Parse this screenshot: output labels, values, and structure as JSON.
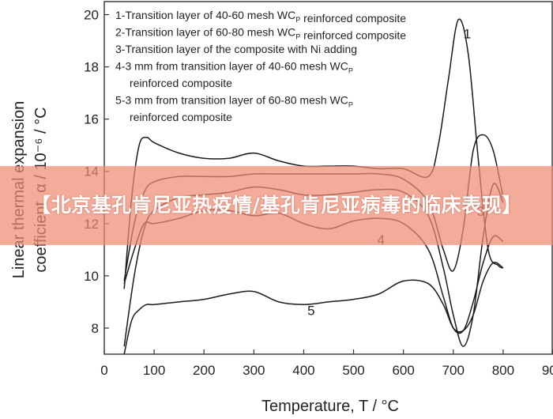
{
  "chart_data": {
    "type": "line",
    "xlabel": "Temperature, T / °C",
    "ylabel": "Linear thermal expansion coefficient, α / 10⁻⁶ / °C",
    "xlim": [
      0,
      900
    ],
    "ylim": [
      7,
      20.5
    ],
    "xticks": [
      0,
      100,
      200,
      300,
      400,
      500,
      600,
      700,
      800,
      900
    ],
    "yticks": [
      8,
      10,
      12,
      14,
      16,
      18,
      20
    ],
    "grid": false,
    "legend_position": "top-left",
    "legend": [
      "1-Transition layer of 40-60 mesh WC_P reinforced composite",
      "2-Transition layer of 60-80 mesh WC_P reinforced composite",
      "3-Transition layer of the composite with Ni adding",
      "4-3 mm from transition layer of 40-60 mesh WC_P reinforced composite",
      "5-3 mm from transition layer of 60-80 mesh WC_P reinforced composite"
    ],
    "series": [
      {
        "name": "1",
        "x": [
          40,
          55,
          70,
          85,
          100,
          150,
          200,
          250,
          300,
          350,
          400,
          450,
          500,
          550,
          600,
          650,
          670,
          690,
          710,
          730,
          750,
          770,
          790,
          800
        ],
        "y": [
          9.5,
          13.0,
          15.0,
          15.3,
          15.1,
          14.7,
          14.5,
          14.5,
          14.7,
          14.4,
          14.2,
          14.2,
          14.2,
          14.1,
          14.1,
          13.8,
          15.0,
          17.5,
          19.8,
          18.5,
          14.5,
          11.0,
          10.4,
          10.3
        ]
      },
      {
        "name": "2",
        "x": [
          40,
          60,
          80,
          100,
          150,
          200,
          250,
          300,
          350,
          400,
          450,
          500,
          550,
          600,
          650,
          680,
          700,
          720,
          740,
          760,
          780,
          800
        ],
        "y": [
          9.8,
          12.0,
          13.2,
          13.6,
          13.8,
          13.8,
          13.8,
          13.9,
          13.9,
          13.9,
          13.9,
          13.9,
          13.9,
          13.7,
          12.8,
          11.0,
          10.2,
          11.8,
          14.8,
          15.4,
          14.8,
          13.0
        ]
      },
      {
        "name": "3",
        "x": [
          40,
          60,
          80,
          100,
          150,
          200,
          250,
          300,
          350,
          400,
          450,
          500,
          550,
          600,
          650,
          680,
          700,
          720,
          740,
          760,
          780,
          800
        ],
        "y": [
          7.3,
          10.0,
          11.8,
          12.5,
          13.0,
          13.1,
          13.2,
          13.4,
          13.3,
          13.1,
          13.1,
          13.2,
          13.3,
          13.2,
          12.3,
          10.3,
          8.5,
          7.3,
          8.5,
          11.5,
          13.5,
          12.8
        ]
      },
      {
        "name": "4",
        "x": [
          40,
          60,
          80,
          100,
          150,
          200,
          250,
          300,
          350,
          400,
          450,
          500,
          550,
          600,
          650,
          680,
          700,
          720,
          740,
          760,
          780,
          800
        ],
        "y": [
          9.7,
          11.0,
          12.0,
          12.0,
          12.2,
          12.5,
          12.5,
          12.3,
          12.4,
          12.0,
          11.8,
          12.1,
          12.2,
          12.0,
          11.0,
          9.2,
          8.0,
          7.9,
          9.0,
          10.5,
          11.5,
          11.3
        ]
      },
      {
        "name": "5",
        "x": [
          40,
          55,
          70,
          85,
          100,
          150,
          200,
          250,
          300,
          350,
          400,
          450,
          500,
          550,
          600,
          650,
          680,
          700,
          720,
          740,
          760,
          780,
          800
        ],
        "y": [
          7.0,
          8.3,
          8.7,
          8.9,
          8.9,
          9.0,
          9.1,
          9.3,
          9.4,
          9.0,
          8.9,
          9.0,
          9.1,
          9.3,
          9.8,
          9.7,
          8.9,
          8.0,
          7.9,
          8.5,
          9.8,
          10.5,
          10.3
        ]
      }
    ],
    "curve_labels": [
      {
        "text": "1",
        "x": 728,
        "y": 19.1
      },
      {
        "text": "3",
        "x": 755,
        "y": 12.3
      },
      {
        "text": "4",
        "x": 555,
        "y": 11.2
      },
      {
        "text": "5",
        "x": 415,
        "y": 8.5
      }
    ]
  },
  "overlay": {
    "text": "【北京基孔肯尼亚热疫情/基孔肯尼亚病毒的临床表现】",
    "color": "#f08c73"
  }
}
